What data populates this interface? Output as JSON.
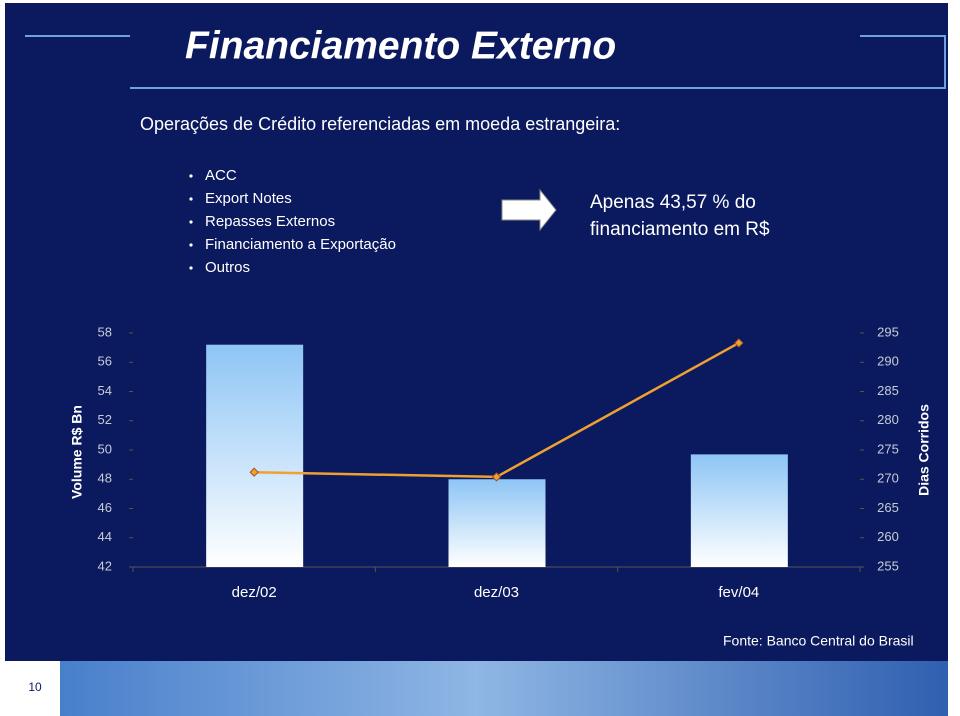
{
  "slide": {
    "title": "Financiamento Externo",
    "subtitle": "Operações de Crédito referenciadas em moeda estrangeira:",
    "bullets": [
      "ACC",
      "Export Notes",
      "Repasses Externos",
      "Financiamento a  Exportação",
      "Outros"
    ],
    "callout": [
      "Apenas 43,57 % do",
      "financiamento em R$"
    ],
    "source": "Fonte: Banco Central do Brasil",
    "page_number": "10"
  },
  "chart_data": {
    "type": "bar",
    "categories": [
      "dez/02",
      "dez/03",
      "fev/04"
    ],
    "series": [
      {
        "type": "bar",
        "axis": "y",
        "color": "#8ec5f5",
        "values": [
          57.2,
          48.0,
          49.7
        ]
      },
      {
        "type": "line",
        "axis": "y2",
        "color": "#f0a030",
        "values": [
          271.2,
          270.4,
          293.3
        ]
      }
    ],
    "y_label": "Volume R$ Bn",
    "y2_label": "Dias Corridos",
    "ylim": [
      42,
      58
    ],
    "yticks": [
      42,
      44,
      46,
      48,
      50,
      52,
      54,
      56,
      58
    ],
    "y2lim": [
      255,
      295
    ],
    "y2ticks": [
      255,
      260,
      265,
      270,
      275,
      280,
      285,
      290,
      295
    ]
  }
}
